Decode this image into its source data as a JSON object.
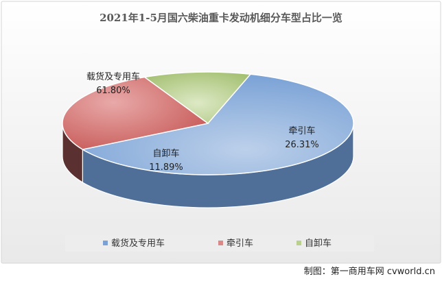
{
  "chart_data": {
    "type": "pie",
    "title": "2021年1-5月国六柴油重卡发动机细分车型占比一览",
    "slices": [
      {
        "label": "载货及专用车",
        "percent": 61.8,
        "percent_text": "61.80%",
        "color": "#7aa2d6",
        "side_color": "#4f6f98"
      },
      {
        "label": "牵引车",
        "percent": 26.31,
        "percent_text": "26.31%",
        "color": "#d98988",
        "side_color": "#5a3130"
      },
      {
        "label": "自卸车",
        "percent": 11.89,
        "percent_text": "11.89%",
        "color": "#b9d08e",
        "side_color": "#748a4e"
      }
    ],
    "legend": {
      "position": "bottom",
      "entries": [
        "载货及专用车",
        "牵引车",
        "自卸车"
      ]
    }
  },
  "credit": "制图：第一商用车网 cvworld.cn"
}
